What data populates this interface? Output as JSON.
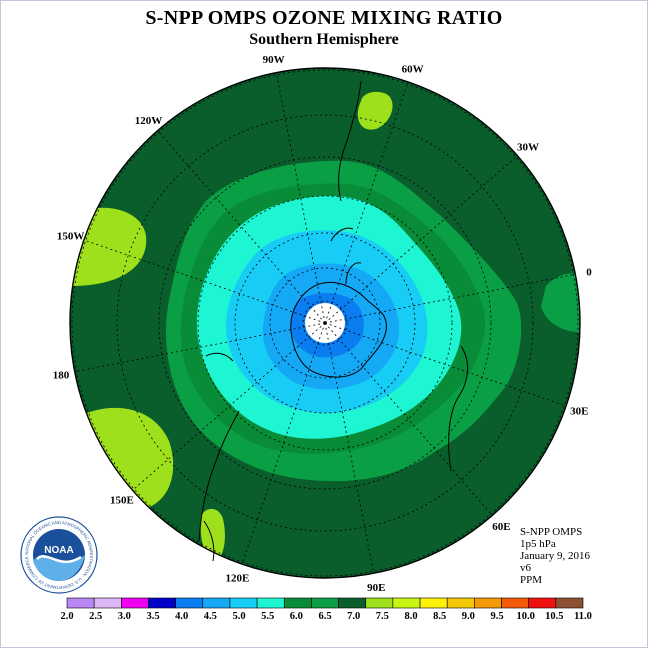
{
  "header": {
    "title": "S-NPP OMPS OZONE MIXING RATIO",
    "subtitle": "Southern Hemisphere"
  },
  "map": {
    "projection": "south polar stereographic",
    "longitude_labels": [
      "90W",
      "60W",
      "30W",
      "0",
      "30E",
      "60E",
      "90E",
      "120E",
      "150E",
      "180",
      "150W",
      "120W"
    ],
    "contour_levels_ppm_shown": [
      "4.5",
      "5.0",
      "5.5",
      "6.0",
      "6.5",
      "7.0",
      "7.5"
    ]
  },
  "info": {
    "instrument": "S-NPP OMPS",
    "level": "1p5 hPa",
    "date": "January 9, 2016",
    "version": "v6",
    "units": "PPM"
  },
  "logo": {
    "text": "NOAA",
    "ring_text": "NATIONAL OCEANIC AND ATMOSPHERIC ADMINISTRATION · U.S. DEPARTMENT OF COMMERCE"
  },
  "colorbar": {
    "labels": [
      "2.0",
      "2.5",
      "3.0",
      "3.5",
      "4.0",
      "4.5",
      "5.0",
      "5.5",
      "6.0",
      "6.5",
      "7.0",
      "7.5",
      "8.0",
      "8.5",
      "9.0",
      "9.5",
      "10.0",
      "10.5",
      "11.0"
    ],
    "colors": [
      "#b988f5",
      "#dcb6f5",
      "#f000f0",
      "#0000c8",
      "#0a7ef0",
      "#14a8f5",
      "#18cdf5",
      "#1ef5d2",
      "#088c38",
      "#0a9f45",
      "#0a5e2c",
      "#9fe01c",
      "#c8f512",
      "#fff00a",
      "#f5c80a",
      "#f59b08",
      "#f55a0a",
      "#f01010",
      "#8c5032"
    ]
  }
}
